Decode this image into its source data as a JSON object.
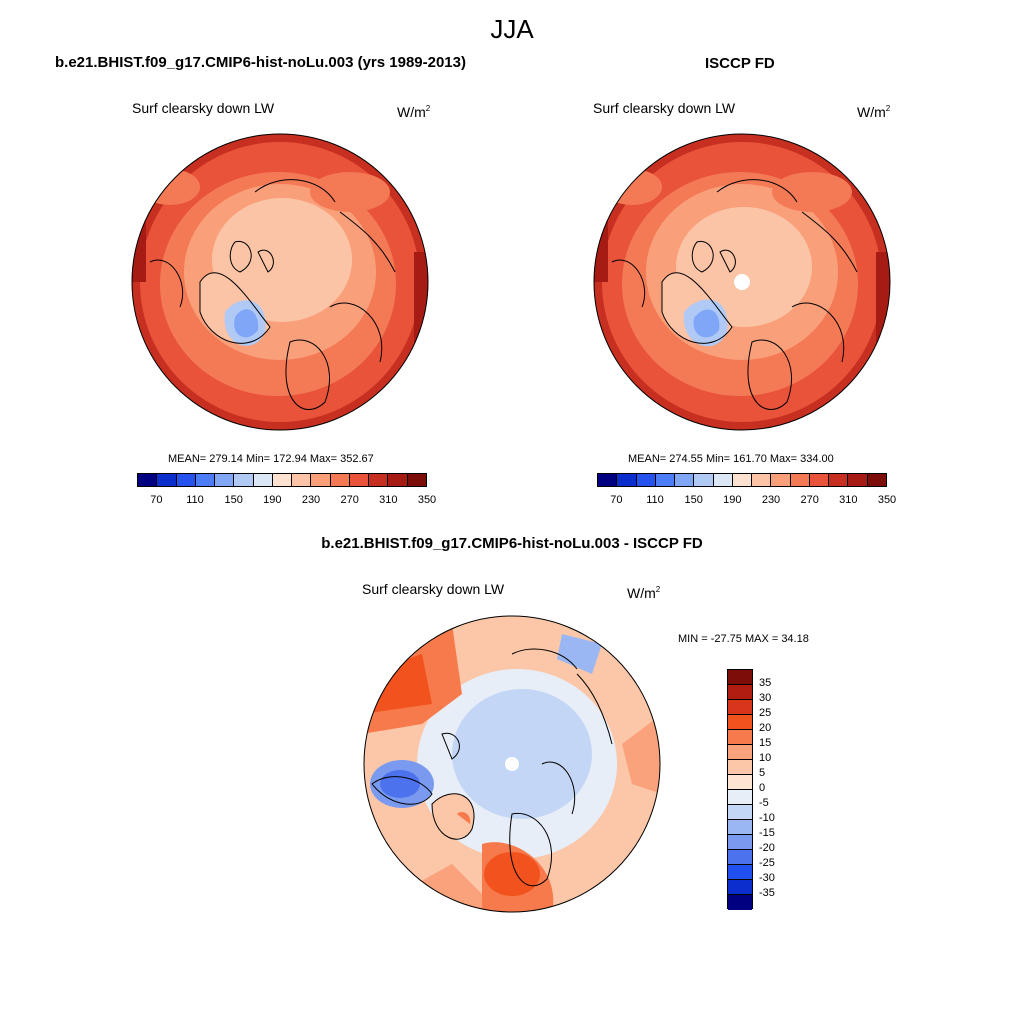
{
  "title": "JJA",
  "colors": {
    "abs_scale": [
      "#000080",
      "#0c2ecf",
      "#2653ef",
      "#4c7df7",
      "#80a6f7",
      "#b0c9f5",
      "#dde8f7",
      "#fde2cf",
      "#fcc4a6",
      "#f9a07b",
      "#f47a56",
      "#e8533a",
      "#c73020",
      "#a61b13",
      "#7d0d08"
    ],
    "diff_scale": [
      "#7d0d08",
      "#b11d10",
      "#d9351a",
      "#f2531e",
      "#f77a4c",
      "#f9a27b",
      "#fbc7a8",
      "#fde5d3",
      "#e7eef8",
      "#c4d6f5",
      "#9ab7f3",
      "#7a9af0",
      "#4c72ee",
      "#2250f0",
      "#0c2ecf",
      "#000080"
    ]
  },
  "panels": {
    "model": {
      "title": "b.e21.BHIST.f09_g17.CMIP6-hist-noLu.003 (yrs 1989-2013)",
      "subtitle": "Surf clearsky down LW",
      "units": "W/m",
      "units_sup": "2",
      "stats": "MEAN= 279.14  Min= 172.94  Max= 352.67",
      "ticks": [
        "70",
        "110",
        "150",
        "190",
        "230",
        "270",
        "310",
        "350"
      ]
    },
    "obs": {
      "title": "ISCCP FD",
      "subtitle": "Surf clearsky down LW",
      "units": "W/m",
      "units_sup": "2",
      "stats": "MEAN= 274.55  Min= 161.70  Max= 334.00",
      "ticks": [
        "70",
        "110",
        "150",
        "190",
        "230",
        "270",
        "310",
        "350"
      ]
    },
    "diff": {
      "title": "b.e21.BHIST.f09_g17.CMIP6-hist-noLu.003 - ISCCP FD",
      "subtitle": "Surf clearsky down LW",
      "units": "W/m",
      "units_sup": "2",
      "stats": "MIN = -27.75 MAX =  34.18",
      "ticks": [
        "35",
        "30",
        "25",
        "20",
        "15",
        "10",
        "5",
        "0",
        "-5",
        "-10",
        "-15",
        "-20",
        "-25",
        "-30",
        "-35"
      ]
    }
  }
}
